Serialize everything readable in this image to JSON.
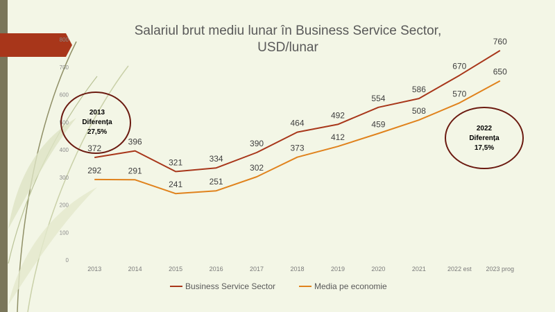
{
  "colors": {
    "background": "#f3f6e6",
    "accent_bar": "#a8361a",
    "left_strip": "#7a765a",
    "series_bss": "#a8361a",
    "series_economy": "#e0821c",
    "annotation_ring": "#6b1a10"
  },
  "chart_data": {
    "type": "line",
    "title": "Salariul brut mediu lunar  în Business Service Sector, USD/lunar",
    "title_lines": [
      "Salariul brut mediu lunar  în Business Service Sector,",
      "USD/lunar"
    ],
    "categories": [
      "2013",
      "2014",
      "2015",
      "2016",
      "2017",
      "2018",
      "2019",
      "2020",
      "2021",
      "2022 est",
      "2023 prog"
    ],
    "series": [
      {
        "name": "Business Service Sector",
        "color": "#a8361a",
        "values": [
          372,
          396,
          321,
          334,
          390,
          464,
          492,
          554,
          586,
          670,
          760
        ],
        "labels": [
          "372",
          "396",
          "321",
          "334",
          "390",
          "464",
          "492",
          "554",
          "586",
          "670",
          "760"
        ]
      },
      {
        "name": "Media pe economie",
        "color": "#e0821c",
        "values": [
          292,
          291,
          241,
          251,
          302,
          373,
          412,
          459,
          508,
          570,
          650
        ],
        "labels": [
          "292",
          "291",
          "241",
          "251",
          "302",
          "373",
          "412",
          "459",
          "508",
          "570",
          "650"
        ]
      }
    ],
    "ylim": [
      0,
      800
    ],
    "yticks": [
      "0",
      "100",
      "200",
      "300",
      "400",
      "500",
      "600",
      "700",
      "800"
    ],
    "xlabel": "",
    "ylabel": "",
    "grid": false,
    "legend_position": "bottom",
    "annotations": [
      {
        "lines": [
          "2013",
          "Diferența",
          "27,5%"
        ]
      },
      {
        "lines": [
          "2022",
          "Diferența",
          "17,5%"
        ]
      }
    ]
  }
}
